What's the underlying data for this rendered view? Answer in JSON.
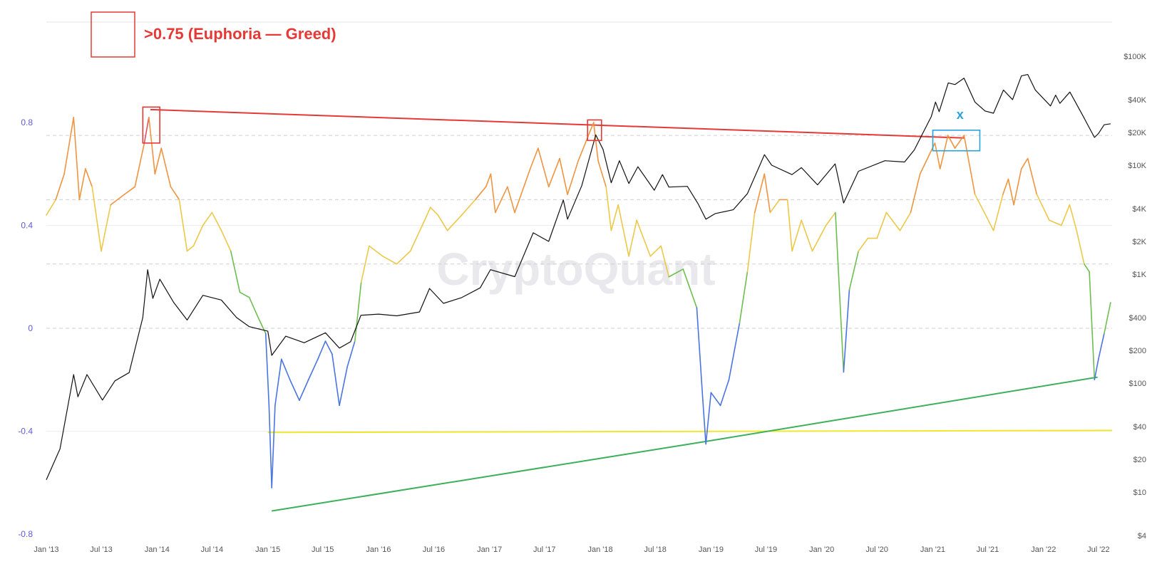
{
  "legend": {
    "label": ">0.75 (Euphoria — Greed)",
    "swatch_color": "#e53935"
  },
  "watermark": "CryptoQuant",
  "annotation_x": "x",
  "chart_data": {
    "type": "line",
    "left_axis": {
      "ticks": [
        0.8,
        0.4,
        0,
        -0.4,
        -0.8
      ],
      "tick_labels": [
        "0.8",
        "0.4",
        "0",
        "-0.4",
        "-0.8"
      ],
      "range": [
        -0.8,
        0.8
      ],
      "dashed_levels": [
        0.75,
        0.5,
        0.25,
        0
      ]
    },
    "right_axis": {
      "scale": "log",
      "ticks": [
        100000,
        40000,
        20000,
        10000,
        4000,
        2000,
        1000,
        400,
        200,
        100,
        40,
        20,
        10,
        4
      ],
      "tick_labels": [
        "$100K",
        "$40K",
        "$20K",
        "$10K",
        "$4K",
        "$2K",
        "$1K",
        "$400",
        "$200",
        "$100",
        "$40",
        "$20",
        "$10",
        "$4"
      ]
    },
    "x_axis": {
      "type": "date",
      "range": [
        "2013-01-01",
        "2022-08-15"
      ],
      "ticks": [
        "2013-01-01",
        "2013-07-01",
        "2014-01-01",
        "2014-07-01",
        "2015-01-01",
        "2015-07-01",
        "2016-01-01",
        "2016-07-01",
        "2017-01-01",
        "2017-07-01",
        "2018-01-01",
        "2018-07-01",
        "2019-01-01",
        "2019-07-01",
        "2020-01-01",
        "2020-07-01",
        "2021-01-01",
        "2021-07-01",
        "2022-01-01",
        "2022-07-01"
      ],
      "tick_labels": [
        "Jan '13",
        "Jul '13",
        "Jan '14",
        "Jul '14",
        "Jan '15",
        "Jul '15",
        "Jan '16",
        "Jul '16",
        "Jan '17",
        "Jul '17",
        "Jan '18",
        "Jul '18",
        "Jan '19",
        "Jul '19",
        "Jan '20",
        "Jul '20",
        "Jan '21",
        "Jul '21",
        "Jan '22",
        "Jul '22"
      ]
    },
    "series": [
      {
        "axis": "left",
        "color_bands": [
          {
            "min": 0.75,
            "color": "#e0525a"
          },
          {
            "min": 0.5,
            "color": "#ef9440"
          },
          {
            "min": 0.25,
            "color": "#ecc848"
          },
          {
            "min": 0.0,
            "color": "#6cbf4f"
          },
          {
            "min": -1,
            "color": "#4a74e0"
          }
        ],
        "points": [
          [
            "2013-01-01",
            0.44
          ],
          [
            "2013-02-01",
            0.5
          ],
          [
            "2013-03-01",
            0.6
          ],
          [
            "2013-04-01",
            0.82
          ],
          [
            "2013-04-20",
            0.5
          ],
          [
            "2013-05-10",
            0.62
          ],
          [
            "2013-06-01",
            0.55
          ],
          [
            "2013-07-01",
            0.3
          ],
          [
            "2013-08-01",
            0.48
          ],
          [
            "2013-09-15",
            0.52
          ],
          [
            "2013-10-20",
            0.55
          ],
          [
            "2013-11-20",
            0.72
          ],
          [
            "2013-12-05",
            0.82
          ],
          [
            "2013-12-25",
            0.6
          ],
          [
            "2014-01-15",
            0.7
          ],
          [
            "2014-02-15",
            0.55
          ],
          [
            "2014-03-15",
            0.5
          ],
          [
            "2014-04-10",
            0.3
          ],
          [
            "2014-05-01",
            0.32
          ],
          [
            "2014-06-01",
            0.4
          ],
          [
            "2014-07-01",
            0.45
          ],
          [
            "2014-08-01",
            0.38
          ],
          [
            "2014-09-01",
            0.3
          ],
          [
            "2014-10-01",
            0.14
          ],
          [
            "2014-11-01",
            0.12
          ],
          [
            "2014-12-01",
            0.04
          ],
          [
            "2014-12-25",
            -0.02
          ],
          [
            "2015-01-05",
            -0.3
          ],
          [
            "2015-01-14",
            -0.62
          ],
          [
            "2015-01-25",
            -0.3
          ],
          [
            "2015-02-15",
            -0.12
          ],
          [
            "2015-03-15",
            -0.2
          ],
          [
            "2015-04-15",
            -0.28
          ],
          [
            "2015-05-15",
            -0.2
          ],
          [
            "2015-06-15",
            -0.12
          ],
          [
            "2015-07-10",
            -0.05
          ],
          [
            "2015-08-01",
            -0.1
          ],
          [
            "2015-08-25",
            -0.3
          ],
          [
            "2015-09-20",
            -0.15
          ],
          [
            "2015-10-15",
            -0.05
          ],
          [
            "2015-11-05",
            0.18
          ],
          [
            "2015-12-01",
            0.32
          ],
          [
            "2016-01-15",
            0.28
          ],
          [
            "2016-03-01",
            0.25
          ],
          [
            "2016-04-15",
            0.3
          ],
          [
            "2016-06-01",
            0.42
          ],
          [
            "2016-06-20",
            0.47
          ],
          [
            "2016-07-15",
            0.44
          ],
          [
            "2016-08-15",
            0.38
          ],
          [
            "2016-10-01",
            0.44
          ],
          [
            "2016-11-15",
            0.5
          ],
          [
            "2016-12-20",
            0.55
          ],
          [
            "2017-01-05",
            0.6
          ],
          [
            "2017-01-20",
            0.45
          ],
          [
            "2017-03-01",
            0.55
          ],
          [
            "2017-03-25",
            0.45
          ],
          [
            "2017-05-15",
            0.62
          ],
          [
            "2017-06-10",
            0.7
          ],
          [
            "2017-07-15",
            0.55
          ],
          [
            "2017-08-20",
            0.66
          ],
          [
            "2017-09-15",
            0.52
          ],
          [
            "2017-10-20",
            0.65
          ],
          [
            "2017-12-10",
            0.8
          ],
          [
            "2017-12-25",
            0.65
          ],
          [
            "2018-01-20",
            0.55
          ],
          [
            "2018-02-06",
            0.38
          ],
          [
            "2018-03-01",
            0.48
          ],
          [
            "2018-04-05",
            0.28
          ],
          [
            "2018-05-01",
            0.42
          ],
          [
            "2018-06-15",
            0.28
          ],
          [
            "2018-07-20",
            0.32
          ],
          [
            "2018-08-15",
            0.2
          ],
          [
            "2018-10-01",
            0.23
          ],
          [
            "2018-11-15",
            0.08
          ],
          [
            "2018-12-05",
            -0.28
          ],
          [
            "2018-12-15",
            -0.45
          ],
          [
            "2019-01-01",
            -0.25
          ],
          [
            "2019-02-01",
            -0.3
          ],
          [
            "2019-03-01",
            -0.2
          ],
          [
            "2019-04-05",
            0.02
          ],
          [
            "2019-05-01",
            0.22
          ],
          [
            "2019-05-25",
            0.45
          ],
          [
            "2019-06-26",
            0.6
          ],
          [
            "2019-07-15",
            0.45
          ],
          [
            "2019-08-15",
            0.5
          ],
          [
            "2019-09-10",
            0.5
          ],
          [
            "2019-09-25",
            0.3
          ],
          [
            "2019-10-26",
            0.42
          ],
          [
            "2019-12-01",
            0.3
          ],
          [
            "2020-01-15",
            0.4
          ],
          [
            "2020-02-15",
            0.45
          ],
          [
            "2020-03-13",
            -0.17
          ],
          [
            "2020-04-01",
            0.15
          ],
          [
            "2020-05-01",
            0.3
          ],
          [
            "2020-06-01",
            0.35
          ],
          [
            "2020-07-01",
            0.35
          ],
          [
            "2020-08-01",
            0.45
          ],
          [
            "2020-09-15",
            0.38
          ],
          [
            "2020-10-20",
            0.45
          ],
          [
            "2020-11-20",
            0.6
          ],
          [
            "2021-01-08",
            0.72
          ],
          [
            "2021-01-25",
            0.62
          ],
          [
            "2021-02-20",
            0.75
          ],
          [
            "2021-03-15",
            0.7
          ],
          [
            "2021-04-14",
            0.75
          ],
          [
            "2021-05-20",
            0.52
          ],
          [
            "2021-06-20",
            0.45
          ],
          [
            "2021-07-20",
            0.38
          ],
          [
            "2021-08-20",
            0.52
          ],
          [
            "2021-09-07",
            0.58
          ],
          [
            "2021-09-25",
            0.48
          ],
          [
            "2021-10-20",
            0.62
          ],
          [
            "2021-11-10",
            0.66
          ],
          [
            "2021-12-10",
            0.52
          ],
          [
            "2022-01-20",
            0.42
          ],
          [
            "2022-03-01",
            0.4
          ],
          [
            "2022-03-28",
            0.48
          ],
          [
            "2022-04-20",
            0.38
          ],
          [
            "2022-05-15",
            0.25
          ],
          [
            "2022-06-01",
            0.22
          ],
          [
            "2022-06-18",
            -0.2
          ],
          [
            "2022-07-01",
            -0.12
          ],
          [
            "2022-07-20",
            -0.02
          ],
          [
            "2022-08-10",
            0.1
          ]
        ]
      },
      {
        "axis": "right",
        "color": "#111111",
        "points": [
          [
            "2013-01-01",
            13
          ],
          [
            "2013-02-15",
            25
          ],
          [
            "2013-04-01",
            120
          ],
          [
            "2013-04-15",
            75
          ],
          [
            "2013-05-15",
            120
          ],
          [
            "2013-07-05",
            70
          ],
          [
            "2013-08-15",
            105
          ],
          [
            "2013-10-01",
            125
          ],
          [
            "2013-11-15",
            400
          ],
          [
            "2013-12-01",
            1100
          ],
          [
            "2013-12-18",
            600
          ],
          [
            "2014-01-10",
            900
          ],
          [
            "2014-02-25",
            550
          ],
          [
            "2014-04-10",
            380
          ],
          [
            "2014-06-01",
            640
          ],
          [
            "2014-08-01",
            580
          ],
          [
            "2014-09-20",
            400
          ],
          [
            "2014-11-01",
            330
          ],
          [
            "2015-01-01",
            300
          ],
          [
            "2015-01-14",
            180
          ],
          [
            "2015-03-01",
            270
          ],
          [
            "2015-05-01",
            235
          ],
          [
            "2015-07-10",
            290
          ],
          [
            "2015-08-25",
            210
          ],
          [
            "2015-10-01",
            240
          ],
          [
            "2015-11-04",
            420
          ],
          [
            "2016-01-01",
            430
          ],
          [
            "2016-03-01",
            415
          ],
          [
            "2016-05-15",
            450
          ],
          [
            "2016-06-17",
            740
          ],
          [
            "2016-08-02",
            540
          ],
          [
            "2016-10-01",
            610
          ],
          [
            "2016-12-01",
            750
          ],
          [
            "2017-01-04",
            1100
          ],
          [
            "2017-03-25",
            950
          ],
          [
            "2017-05-25",
            2400
          ],
          [
            "2017-07-15",
            2000
          ],
          [
            "2017-09-01",
            4800
          ],
          [
            "2017-09-15",
            3200
          ],
          [
            "2017-11-01",
            6500
          ],
          [
            "2017-12-17",
            19000
          ],
          [
            "2018-01-10",
            14000
          ],
          [
            "2018-02-06",
            6900
          ],
          [
            "2018-03-05",
            11000
          ],
          [
            "2018-04-05",
            6800
          ],
          [
            "2018-05-05",
            9700
          ],
          [
            "2018-06-28",
            5900
          ],
          [
            "2018-07-25",
            8200
          ],
          [
            "2018-08-15",
            6300
          ],
          [
            "2018-10-15",
            6400
          ],
          [
            "2018-11-20",
            4400
          ],
          [
            "2018-12-15",
            3200
          ],
          [
            "2019-01-15",
            3600
          ],
          [
            "2019-03-15",
            3900
          ],
          [
            "2019-05-01",
            5500
          ],
          [
            "2019-06-26",
            12500
          ],
          [
            "2019-07-20",
            10000
          ],
          [
            "2019-09-25",
            8200
          ],
          [
            "2019-10-26",
            9500
          ],
          [
            "2019-12-18",
            6600
          ],
          [
            "2020-02-14",
            10300
          ],
          [
            "2020-03-13",
            4500
          ],
          [
            "2020-05-01",
            8800
          ],
          [
            "2020-07-27",
            11000
          ],
          [
            "2020-09-30",
            10700
          ],
          [
            "2020-11-01",
            13800
          ],
          [
            "2020-12-27",
            28000
          ],
          [
            "2021-01-10",
            38000
          ],
          [
            "2021-01-22",
            31000
          ],
          [
            "2021-02-21",
            57000
          ],
          [
            "2021-03-15",
            55000
          ],
          [
            "2021-04-14",
            63000
          ],
          [
            "2021-05-20",
            38000
          ],
          [
            "2021-06-22",
            31500
          ],
          [
            "2021-07-20",
            30000
          ],
          [
            "2021-08-22",
            49000
          ],
          [
            "2021-09-21",
            40000
          ],
          [
            "2021-10-20",
            66000
          ],
          [
            "2021-11-10",
            68000
          ],
          [
            "2021-12-05",
            49000
          ],
          [
            "2022-01-24",
            35000
          ],
          [
            "2022-02-10",
            44000
          ],
          [
            "2022-02-24",
            37000
          ],
          [
            "2022-03-29",
            47000
          ],
          [
            "2022-05-12",
            28000
          ],
          [
            "2022-06-18",
            18000
          ],
          [
            "2022-07-01",
            19500
          ],
          [
            "2022-07-20",
            23500
          ],
          [
            "2022-08-10",
            24000
          ]
        ]
      }
    ],
    "annotations": {
      "red_trendline": {
        "color": "#e53935",
        "points": [
          [
            "2013-12-10",
            0.85
          ],
          [
            "2021-04-14",
            0.74
          ]
        ]
      },
      "green_trendline": {
        "color": "#3cb05a",
        "points": [
          [
            "2015-01-14",
            -0.71
          ],
          [
            "2018-12-15",
            -0.44
          ],
          [
            "2022-06-28",
            -0.19
          ]
        ]
      },
      "yellow_line": {
        "color": "#f0e830",
        "points": [
          [
            "2015-01-01",
            -0.405
          ],
          [
            "2022-08-15",
            -0.397
          ]
        ]
      },
      "highlight_boxes": [
        {
          "color": "#e53935",
          "from": "2013-11-15",
          "to": "2014-01-10",
          "y_top": 0.86,
          "y_bottom": 0.72
        },
        {
          "color": "#e53935",
          "from": "2017-11-20",
          "to": "2018-01-05",
          "y_top": 0.81,
          "y_bottom": 0.73
        },
        {
          "color": "#29a3e0",
          "from": "2021-01-01",
          "to": "2021-06-05",
          "y_top": 0.77,
          "y_bottom": 0.69
        }
      ],
      "x_marker": {
        "date": "2021-04-01",
        "value": 0.83
      }
    }
  }
}
